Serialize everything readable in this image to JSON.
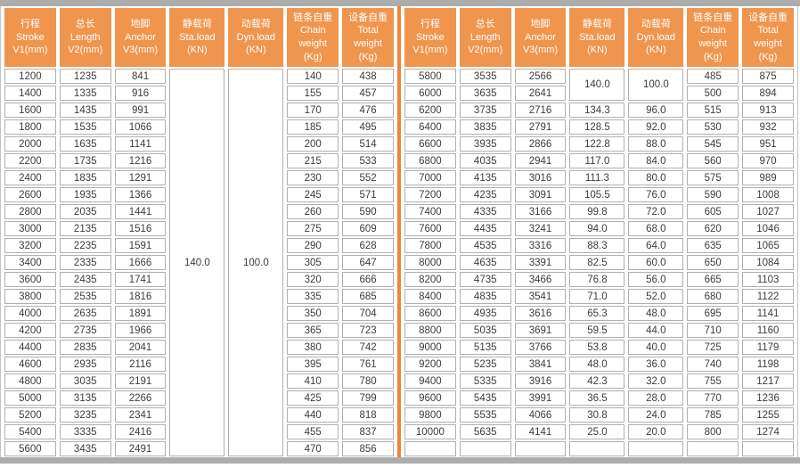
{
  "colors": {
    "header_bg": "#F0954E",
    "divider_orange": "#ED863B",
    "frame_gray": "#ADADAD",
    "cell_border": "#B0B0B0",
    "header_text": "#FFFFFF",
    "cell_text": "#3C3C3C"
  },
  "chart_data": {
    "type": "table",
    "columns": [
      {
        "lines": [
          "行程",
          "Stroke",
          "V1(mm)"
        ]
      },
      {
        "lines": [
          "总长",
          "Length",
          "V2(mm)"
        ]
      },
      {
        "lines": [
          "地脚",
          "Anchor",
          "V3(mm)"
        ]
      },
      {
        "lines": [
          "静载荷",
          "Sta.load",
          "(KN)"
        ]
      },
      {
        "lines": [
          "动载荷",
          "Dyn.load",
          "(KN)"
        ]
      },
      {
        "lines": [
          "链条自重",
          "Chain",
          "weight",
          "(Kg)"
        ]
      },
      {
        "lines": [
          "设备自重",
          "Total",
          "weight",
          "(Kg)"
        ]
      }
    ],
    "left_rows": [
      [
        "1200",
        "1235",
        "841",
        {
          "v": "140.0",
          "rs": 23
        },
        {
          "v": "100.0",
          "rs": 23
        },
        "140",
        "438"
      ],
      [
        "1400",
        "1335",
        "916",
        "155",
        "457"
      ],
      [
        "1600",
        "1435",
        "991",
        "170",
        "476"
      ],
      [
        "1800",
        "1535",
        "1066",
        "185",
        "495"
      ],
      [
        "2000",
        "1635",
        "1141",
        "200",
        "514"
      ],
      [
        "2200",
        "1735",
        "1216",
        "215",
        "533"
      ],
      [
        "2400",
        "1835",
        "1291",
        "230",
        "552"
      ],
      [
        "2600",
        "1935",
        "1366",
        "245",
        "571"
      ],
      [
        "2800",
        "2035",
        "1441",
        "260",
        "590"
      ],
      [
        "3000",
        "2135",
        "1516",
        "275",
        "609"
      ],
      [
        "3200",
        "2235",
        "1591",
        "290",
        "628"
      ],
      [
        "3400",
        "2335",
        "1666",
        "305",
        "647"
      ],
      [
        "3600",
        "2435",
        "1741",
        "320",
        "666"
      ],
      [
        "3800",
        "2535",
        "1816",
        "335",
        "685"
      ],
      [
        "4000",
        "2635",
        "1891",
        "350",
        "704"
      ],
      [
        "4200",
        "2735",
        "1966",
        "365",
        "723"
      ],
      [
        "4400",
        "2835",
        "2041",
        "380",
        "742"
      ],
      [
        "4600",
        "2935",
        "2116",
        "395",
        "761"
      ],
      [
        "4800",
        "3035",
        "2191",
        "410",
        "780"
      ],
      [
        "5000",
        "3135",
        "2266",
        "425",
        "799"
      ],
      [
        "5200",
        "3235",
        "2341",
        "440",
        "818"
      ],
      [
        "5400",
        "3335",
        "2416",
        "455",
        "837"
      ],
      [
        "5600",
        "3435",
        "2491",
        "470",
        "856"
      ]
    ],
    "right_rows": [
      [
        "5800",
        "3535",
        "2566",
        {
          "v": "140.0",
          "rs": 2
        },
        {
          "v": "100.0",
          "rs": 2
        },
        "485",
        "875"
      ],
      [
        "6000",
        "3635",
        "2641",
        "500",
        "894"
      ],
      [
        "6200",
        "3735",
        "2716",
        "134.3",
        "96.0",
        "515",
        "913"
      ],
      [
        "6400",
        "3835",
        "2791",
        "128.5",
        "92.0",
        "530",
        "932"
      ],
      [
        "6600",
        "3935",
        "2866",
        "122.8",
        "88.0",
        "545",
        "951"
      ],
      [
        "6800",
        "4035",
        "2941",
        "117.0",
        "84.0",
        "560",
        "970"
      ],
      [
        "7000",
        "4135",
        "3016",
        "111.3",
        "80.0",
        "575",
        "989"
      ],
      [
        "7200",
        "4235",
        "3091",
        "105.5",
        "76.0",
        "590",
        "1008"
      ],
      [
        "7400",
        "4335",
        "3166",
        "99.8",
        "72.0",
        "605",
        "1027"
      ],
      [
        "7600",
        "4435",
        "3241",
        "94.0",
        "68.0",
        "620",
        "1046"
      ],
      [
        "7800",
        "4535",
        "3316",
        "88.3",
        "64.0",
        "635",
        "1065"
      ],
      [
        "8000",
        "4635",
        "3391",
        "82.5",
        "60.0",
        "650",
        "1084"
      ],
      [
        "8200",
        "4735",
        "3466",
        "76.8",
        "56.0",
        "665",
        "1103"
      ],
      [
        "8400",
        "4835",
        "3541",
        "71.0",
        "52.0",
        "680",
        "1122"
      ],
      [
        "8600",
        "4935",
        "3616",
        "65.3",
        "48.0",
        "695",
        "1141"
      ],
      [
        "8800",
        "5035",
        "3691",
        "59.5",
        "44.0",
        "710",
        "1160"
      ],
      [
        "9000",
        "5135",
        "3766",
        "53.8",
        "40.0",
        "725",
        "1179"
      ],
      [
        "9200",
        "5235",
        "3841",
        "48.0",
        "36.0",
        "740",
        "1198"
      ],
      [
        "9400",
        "5335",
        "3916",
        "42.3",
        "32.0",
        "755",
        "1217"
      ],
      [
        "9600",
        "5435",
        "3991",
        "36.5",
        "28.0",
        "770",
        "1236"
      ],
      [
        "9800",
        "5535",
        "4066",
        "30.8",
        "24.0",
        "785",
        "1255"
      ],
      [
        "10000",
        "5635",
        "4141",
        "25.0",
        "20.0",
        "800",
        "1274"
      ],
      [
        "",
        "",
        "",
        "",
        "",
        "",
        ""
      ]
    ],
    "layout_hints": {
      "column_width_percents": [
        14,
        14,
        14,
        15,
        15,
        14,
        14
      ],
      "merged_note": "left table Sta.load/Dyn.load merged over all 23 rows; right table merged over first 2 rows; last right row empty"
    }
  }
}
